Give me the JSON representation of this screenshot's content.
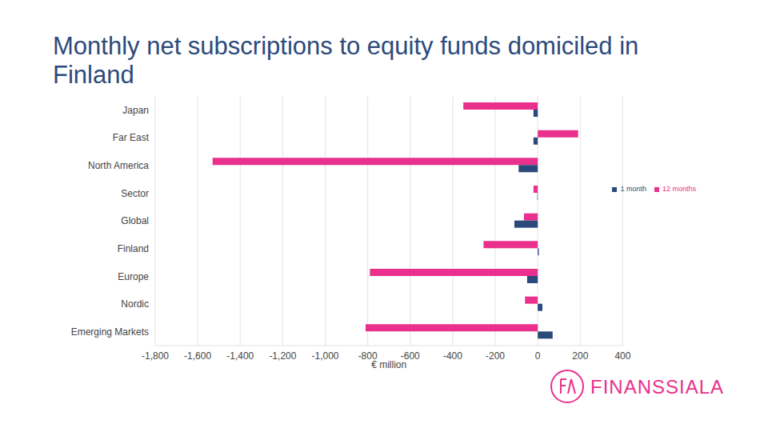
{
  "chart_data": {
    "type": "bar",
    "title": "Monthly net subscriptions to equity funds domiciled in Finland",
    "orientation": "horizontal",
    "x_label": "€ million",
    "categories": [
      "Japan",
      "Far East",
      "North America",
      "Sector",
      "Global",
      "Finland",
      "Europe",
      "Nordic",
      "Emerging Markets"
    ],
    "series": [
      {
        "name": "12 months",
        "color": "#e8308c",
        "values": [
          -350,
          190,
          -1530,
          -20,
          -65,
          -255,
          -790,
          -60,
          -810
        ]
      },
      {
        "name": "1 month",
        "color": "#2b4a7b",
        "values": [
          -20,
          -20,
          -90,
          -2,
          -110,
          5,
          -50,
          22,
          70
        ]
      }
    ],
    "xlim": [
      -1800,
      400
    ],
    "xticks": [
      {
        "value": -1800,
        "label": "-1,800"
      },
      {
        "value": -1600,
        "label": "-1,600"
      },
      {
        "value": -1400,
        "label": "-1,400"
      },
      {
        "value": -1200,
        "label": "-1,200"
      },
      {
        "value": -1000,
        "label": "-1,000"
      },
      -800,
      -600,
      -400,
      -200,
      0,
      200,
      400
    ],
    "grid": true,
    "legend": "right",
    "annotations": [
      "FINANSSIALA"
    ]
  }
}
